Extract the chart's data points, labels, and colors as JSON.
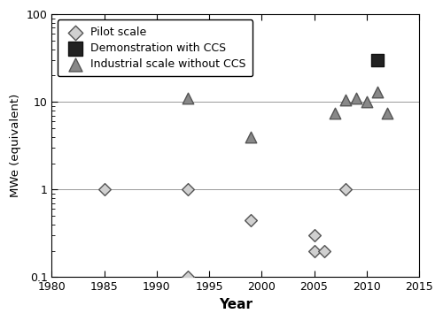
{
  "pilot_scale": {
    "x": [
      1985,
      1993,
      1993,
      1999,
      2005,
      2005,
      2006,
      2008
    ],
    "y": [
      1.0,
      1.0,
      0.1,
      0.45,
      0.3,
      0.2,
      0.2,
      1.0
    ],
    "label": "Pilot scale",
    "marker": "D",
    "facecolor": "#d0d0d0",
    "edgecolor": "#555555",
    "markersize": 7
  },
  "demo_ccs": {
    "x": [
      2011
    ],
    "y": [
      30
    ],
    "label": "Demonstration with CCS",
    "marker": "s",
    "facecolor": "#222222",
    "edgecolor": "#111111",
    "markersize": 10
  },
  "industrial_no_ccs": {
    "x": [
      1993,
      1999,
      2007,
      2008,
      2009,
      2010,
      2011,
      2012
    ],
    "y": [
      11,
      4,
      7.5,
      10.5,
      11,
      10,
      13,
      7.5
    ],
    "label": "Industrial scale without CCS",
    "marker": "^",
    "facecolor": "#888888",
    "edgecolor": "#555555",
    "markersize": 9
  },
  "xlim": [
    1980,
    2015
  ],
  "ylim": [
    0.1,
    100
  ],
  "xlabel": "Year",
  "ylabel": "MWe (equivalent)",
  "xticks": [
    1980,
    1985,
    1990,
    1995,
    2000,
    2005,
    2010,
    2015
  ],
  "yticks": [
    0.1,
    1,
    10,
    100
  ],
  "ytick_labels": [
    "0.1",
    "1",
    "10",
    "100"
  ],
  "grid_color": "#999999",
  "background_color": "#ffffff"
}
